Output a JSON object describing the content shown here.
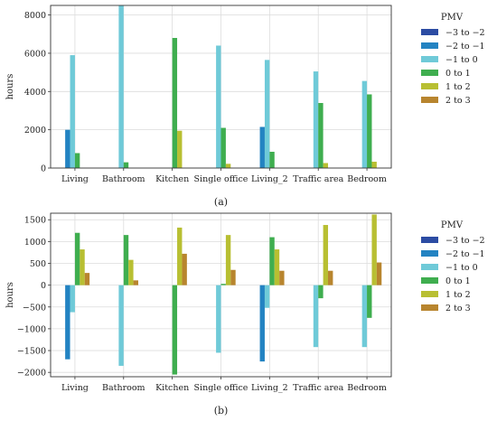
{
  "chart_data": [
    {
      "type": "bar",
      "caption": "(a)",
      "ylabel": "hours",
      "ylim": [
        0,
        8500
      ],
      "yticks": [
        0,
        2000,
        4000,
        6000,
        8000
      ],
      "grid": true,
      "legend": {
        "title": "PMV",
        "placement": "right-outside"
      },
      "categories": [
        "Living",
        "Bathroom",
        "Kitchen",
        "Single office",
        "Living_2",
        "Traffic area",
        "Bedroom"
      ],
      "series": [
        {
          "name": "−3 to −2",
          "color": "#2c4ca3",
          "values": [
            0,
            0,
            0,
            0,
            0,
            0,
            0
          ]
        },
        {
          "name": "−2 to −1",
          "color": "#2383c2",
          "values": [
            2000,
            0,
            0,
            0,
            2150,
            0,
            0
          ]
        },
        {
          "name": "−1 to 0",
          "color": "#6fcad8",
          "values": [
            5900,
            8500,
            0,
            6400,
            5650,
            5050,
            4550
          ]
        },
        {
          "name": "0 to 1",
          "color": "#3fae4f",
          "values": [
            780,
            300,
            6800,
            2100,
            850,
            3400,
            3850
          ]
        },
        {
          "name": "1 to 2",
          "color": "#b8bf32",
          "values": [
            0,
            0,
            1950,
            220,
            0,
            260,
            330
          ]
        },
        {
          "name": "2 to 3",
          "color": "#b8852e",
          "values": [
            0,
            0,
            0,
            0,
            0,
            0,
            0
          ]
        }
      ]
    },
    {
      "type": "bar",
      "caption": "(b)",
      "ylabel": "hours",
      "ylim": [
        -2100,
        1650
      ],
      "yticks": [
        -2000,
        -1500,
        -1000,
        -500,
        0,
        500,
        1000,
        1500
      ],
      "grid": true,
      "legend": {
        "title": "PMV",
        "placement": "right-outside"
      },
      "categories": [
        "Living",
        "Bathroom",
        "Kitchen",
        "Single office",
        "Living_2",
        "Traffic area",
        "Bedroom"
      ],
      "series": [
        {
          "name": "−3 to −2",
          "color": "#2c4ca3",
          "values": [
            0,
            0,
            0,
            0,
            0,
            0,
            0
          ]
        },
        {
          "name": "−2 to −1",
          "color": "#2383c2",
          "values": [
            -1700,
            0,
            0,
            0,
            -1750,
            0,
            0
          ]
        },
        {
          "name": "−1 to 0",
          "color": "#6fcad8",
          "values": [
            -620,
            -1850,
            0,
            -1550,
            -520,
            -1420,
            -1420
          ]
        },
        {
          "name": "0 to 1",
          "color": "#3fae4f",
          "values": [
            1200,
            1150,
            -2050,
            30,
            1100,
            -300,
            -750
          ]
        },
        {
          "name": "1 to 2",
          "color": "#b8bf32",
          "values": [
            820,
            580,
            1320,
            1150,
            820,
            1380,
            1620
          ]
        },
        {
          "name": "2 to 3",
          "color": "#b8852e",
          "values": [
            280,
            110,
            720,
            350,
            330,
            330,
            520
          ]
        }
      ]
    }
  ]
}
